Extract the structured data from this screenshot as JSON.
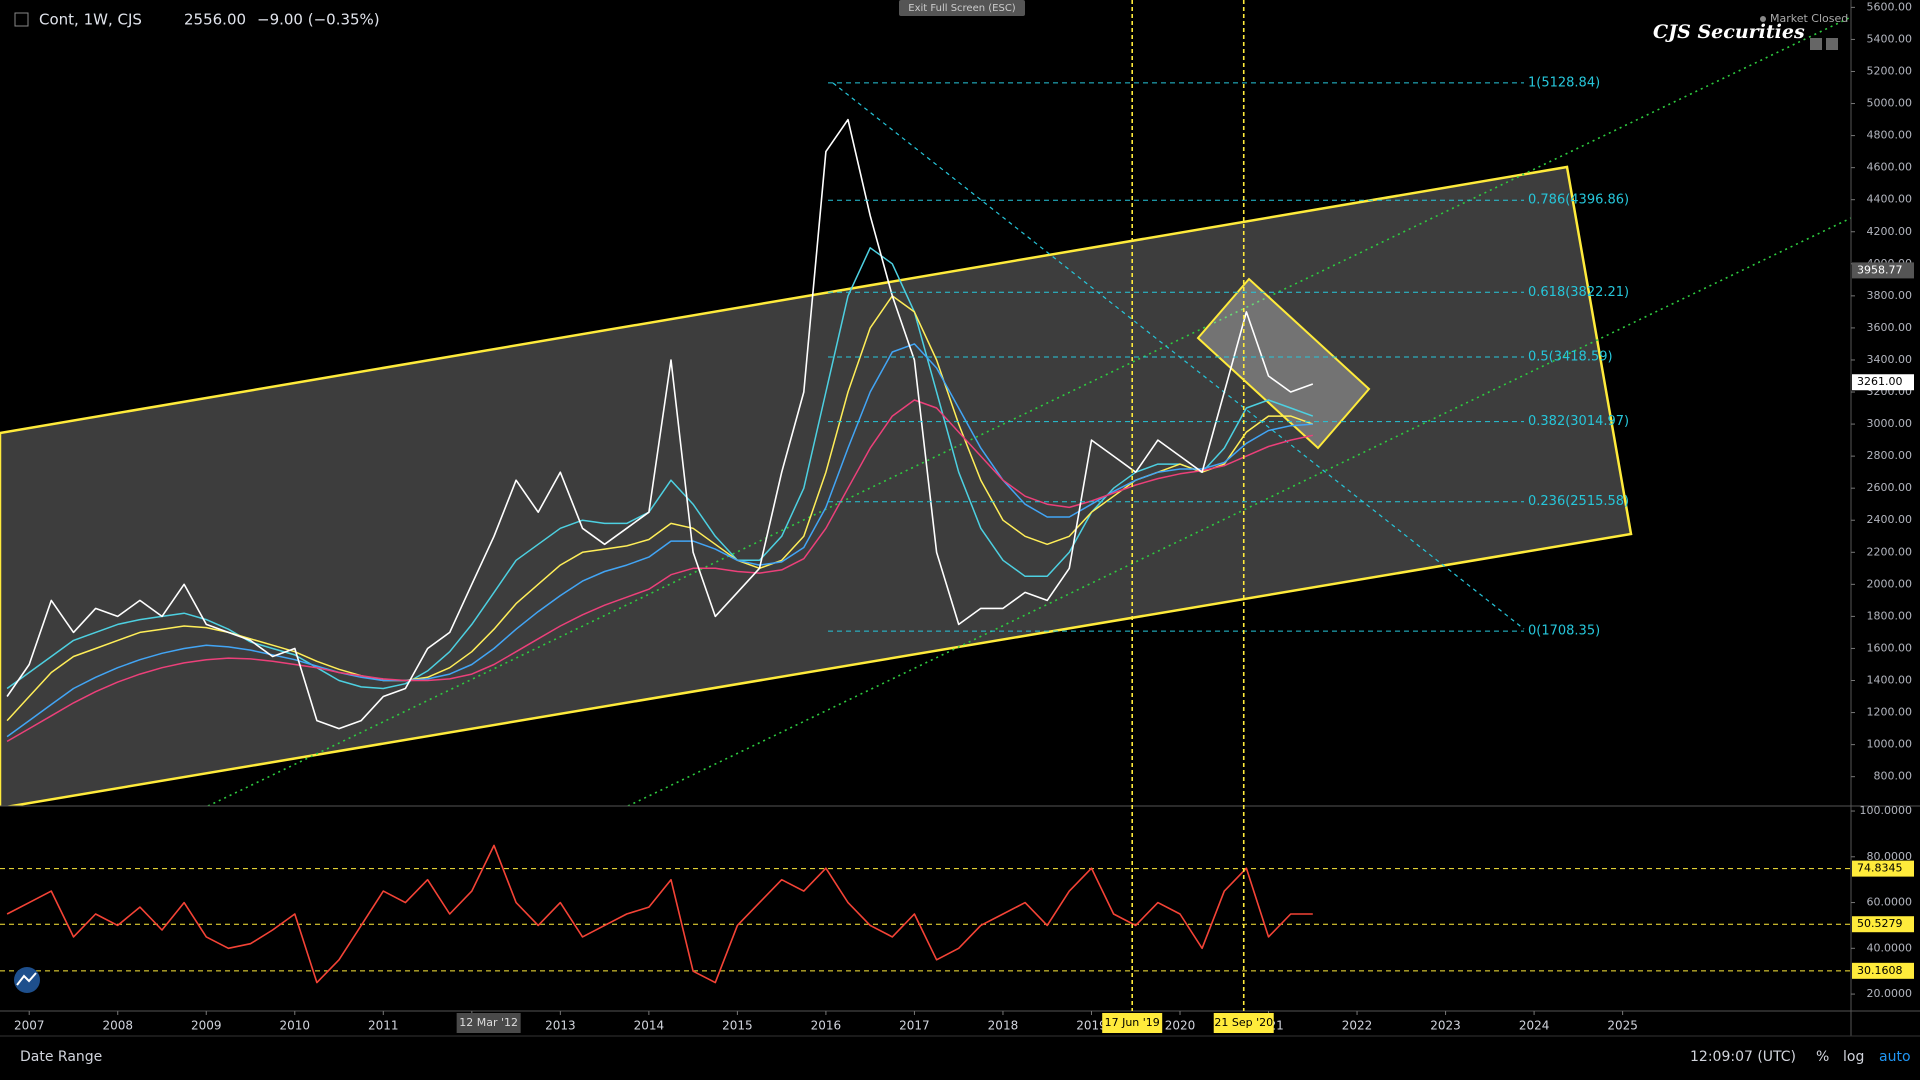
{
  "header": {
    "symbol": "Cont, 1W, CJS",
    "last": "2556.00",
    "change": "−9.00 (−0.35%)",
    "exit": "Exit Full Screen (ESC)",
    "status": "Market Closed",
    "brand": "CJS Securities"
  },
  "footer": {
    "range": "Date Range",
    "time": "12:09:07 (UTC)",
    "percent": "%",
    "log": "log",
    "auto": "auto"
  },
  "chart_data": [
    {
      "type": "line",
      "x": [
        2006.75,
        2007,
        2007.25,
        2007.5,
        2007.75,
        2008,
        2008.25,
        2008.5,
        2008.75,
        2009,
        2009.25,
        2009.5,
        2009.75,
        2010,
        2010.25,
        2010.5,
        2010.75,
        2011,
        2011.25,
        2011.5,
        2011.75,
        2012,
        2012.25,
        2012.5,
        2012.75,
        2013,
        2013.25,
        2013.5,
        2013.75,
        2014,
        2014.25,
        2014.5,
        2014.75,
        2015,
        2015.25,
        2015.5,
        2015.75,
        2016,
        2016.25,
        2016.5,
        2016.75,
        2017,
        2017.25,
        2017.5,
        2017.75,
        2018,
        2018.25,
        2018.5,
        2018.75,
        2019,
        2019.25,
        2019.5,
        2019.75,
        2020,
        2020.25,
        2020.5,
        2020.75,
        2021,
        2021.25,
        2021.5
      ],
      "series": [
        {
          "color": "#ffffff",
          "values": [
            1300,
            1500,
            1900,
            1700,
            1850,
            1800,
            1900,
            1800,
            2000,
            1750,
            1700,
            1650,
            1550,
            1600,
            1150,
            1100,
            1150,
            1300,
            1350,
            1600,
            1700,
            2000,
            2300,
            2650,
            2450,
            2700,
            2350,
            2250,
            2350,
            2450,
            3400,
            2200,
            1800,
            1950,
            2100,
            2700,
            3200,
            4700,
            4900,
            4300,
            3800,
            3400,
            2200,
            1750,
            1850,
            1850,
            1950,
            1900,
            2100,
            2900,
            2800,
            2700,
            2900,
            2800,
            2700,
            3200,
            3700,
            3300,
            3200,
            3250
          ]
        },
        {
          "color": "#4dd0e1",
          "values": [
            1350,
            1450,
            1550,
            1650,
            1700,
            1750,
            1780,
            1800,
            1820,
            1780,
            1720,
            1640,
            1600,
            1560,
            1480,
            1400,
            1360,
            1350,
            1380,
            1460,
            1580,
            1750,
            1950,
            2150,
            2250,
            2350,
            2400,
            2380,
            2380,
            2450,
            2650,
            2500,
            2300,
            2150,
            2150,
            2300,
            2600,
            3200,
            3800,
            4100,
            4000,
            3700,
            3200,
            2700,
            2350,
            2150,
            2050,
            2050,
            2200,
            2450,
            2600,
            2700,
            2750,
            2750,
            2700,
            2850,
            3100,
            3150,
            3100,
            3050
          ]
        },
        {
          "color": "#ffee58",
          "values": [
            1150,
            1300,
            1450,
            1550,
            1600,
            1650,
            1700,
            1720,
            1740,
            1730,
            1700,
            1660,
            1620,
            1580,
            1520,
            1470,
            1430,
            1400,
            1400,
            1420,
            1480,
            1580,
            1720,
            1880,
            2000,
            2120,
            2200,
            2220,
            2240,
            2280,
            2380,
            2350,
            2250,
            2150,
            2100,
            2150,
            2300,
            2700,
            3200,
            3600,
            3800,
            3700,
            3400,
            3000,
            2650,
            2400,
            2300,
            2250,
            2300,
            2450,
            2550,
            2650,
            2700,
            2750,
            2700,
            2750,
            2950,
            3050,
            3050,
            3000
          ]
        },
        {
          "color": "#42a5f5",
          "values": [
            1050,
            1150,
            1250,
            1350,
            1420,
            1480,
            1530,
            1570,
            1600,
            1620,
            1610,
            1590,
            1560,
            1530,
            1490,
            1450,
            1420,
            1400,
            1400,
            1410,
            1440,
            1500,
            1600,
            1720,
            1830,
            1930,
            2020,
            2080,
            2120,
            2170,
            2270,
            2270,
            2220,
            2150,
            2120,
            2140,
            2230,
            2480,
            2850,
            3200,
            3450,
            3500,
            3350,
            3100,
            2850,
            2650,
            2500,
            2420,
            2420,
            2500,
            2580,
            2650,
            2700,
            2720,
            2720,
            2760,
            2880,
            2960,
            2990,
            3000
          ]
        },
        {
          "color": "#ec407a",
          "values": [
            1020,
            1100,
            1180,
            1260,
            1330,
            1390,
            1440,
            1480,
            1510,
            1530,
            1540,
            1535,
            1520,
            1500,
            1480,
            1450,
            1430,
            1410,
            1400,
            1400,
            1410,
            1440,
            1500,
            1580,
            1660,
            1740,
            1810,
            1870,
            1920,
            1970,
            2060,
            2100,
            2100,
            2080,
            2070,
            2090,
            2160,
            2350,
            2600,
            2850,
            3050,
            3150,
            3100,
            2950,
            2800,
            2650,
            2550,
            2500,
            2480,
            2520,
            2570,
            2620,
            2660,
            2690,
            2710,
            2740,
            2800,
            2860,
            2900,
            2930
          ]
        }
      ],
      "xlim": [
        2006.67,
        2027.58
      ],
      "xticks": [
        2007,
        2008,
        2009,
        2010,
        2011,
        2012,
        2013,
        2014,
        2015,
        2016,
        2017,
        2018,
        2019,
        2020,
        2021,
        2022,
        2023,
        2024,
        2025
      ],
      "ylim": [
        617,
        5646
      ],
      "yticks": [
        {
          "value": 800,
          "label": "800.00"
        },
        {
          "value": 1000,
          "label": "1000.00"
        },
        {
          "value": 1200,
          "label": "1200.00"
        },
        {
          "value": 1400,
          "label": "1400.00"
        },
        {
          "value": 1600,
          "label": "1600.00"
        },
        {
          "value": 1800,
          "label": "1800.00"
        },
        {
          "value": 2000,
          "label": "2000.00"
        },
        {
          "value": 2200,
          "label": "2200.00"
        },
        {
          "value": 2400,
          "label": "2400.00"
        },
        {
          "value": 2600,
          "label": "2600.00"
        },
        {
          "value": 2800,
          "label": "2800.00"
        },
        {
          "value": 3000,
          "label": "3000.00"
        },
        {
          "value": 3200,
          "label": "3200.00"
        },
        {
          "value": 3400,
          "label": "3400.00"
        },
        {
          "value": 3600,
          "label": "3600.00"
        },
        {
          "value": 3800,
          "label": "3800.00"
        },
        {
          "value": 4000,
          "label": "4000.00"
        },
        {
          "value": 4200,
          "label": "4200.00"
        },
        {
          "value": 4400,
          "label": "4400.00"
        },
        {
          "value": 4600,
          "label": "4600.00"
        },
        {
          "value": 4800,
          "label": "4800.00"
        },
        {
          "value": 5000,
          "label": "5000.00"
        },
        {
          "value": 5200,
          "label": "5200.00"
        },
        {
          "value": 5400,
          "label": "5400.00"
        },
        {
          "value": 5600,
          "label": "5600.00"
        }
      ],
      "fib_levels": [
        {
          "value": 5128.84,
          "label": "1(5128.84)"
        },
        {
          "value": 4396.86,
          "label": "0.786(4396.86)"
        },
        {
          "value": 3822.21,
          "label": "0.618(3822.21)"
        },
        {
          "value": 3418.59,
          "label": "0.5(3418.59)"
        },
        {
          "value": 3014.97,
          "label": "0.382(3014.97)"
        },
        {
          "value": 2515.58,
          "label": "0.236(2515.58)"
        },
        {
          "value": 1708.35,
          "label": "0(1708.35)"
        }
      ],
      "fib_color": "#26c6da",
      "price_labels": [
        3958.77,
        {
          "value": 3261,
          "label": "3261.00"
        }
      ],
      "markers": [
        {
          "value": 2019.46,
          "label": "17 Jun '19"
        },
        {
          "value": 2020.72,
          "label": "21 Sep '20"
        }
      ],
      "marker_color": "#ffeb3b",
      "crosshair": {
        "value": 2012.19,
        "label": "12 Mar '12"
      }
    },
    {
      "type": "line",
      "x": [
        2006.75,
        2007,
        2007.25,
        2007.5,
        2007.75,
        2008,
        2008.25,
        2008.5,
        2008.75,
        2009,
        2009.25,
        2009.5,
        2009.75,
        2010,
        2010.25,
        2010.5,
        2010.75,
        2011,
        2011.25,
        2011.5,
        2011.75,
        2012,
        2012.25,
        2012.5,
        2012.75,
        2013,
        2013.25,
        2013.5,
        2013.75,
        2014,
        2014.25,
        2014.5,
        2014.75,
        2015,
        2015.25,
        2015.5,
        2015.75,
        2016,
        2016.25,
        2016.5,
        2016.75,
        2017,
        2017.25,
        2017.5,
        2017.75,
        2018,
        2018.25,
        2018.5,
        2018.75,
        2019,
        2019.25,
        2019.5,
        2019.75,
        2020,
        2020.25,
        2020.5,
        2020.75,
        2021,
        2021.25,
        2021.5
      ],
      "series": [
        {
          "color": "#f44336",
          "values": [
            55,
            60,
            65,
            45,
            55,
            50,
            58,
            48,
            60,
            45,
            40,
            42,
            48,
            55,
            25,
            35,
            50,
            65,
            60,
            70,
            55,
            65,
            85,
            60,
            50,
            60,
            45,
            50,
            55,
            58,
            70,
            30,
            25,
            50,
            60,
            70,
            65,
            75,
            60,
            50,
            45,
            55,
            35,
            40,
            50,
            55,
            60,
            50,
            65,
            75,
            55,
            50,
            60,
            55,
            40,
            65,
            75,
            45,
            55,
            55
          ]
        }
      ],
      "xlim": [
        2006.67,
        2027.58
      ],
      "ylim": [
        12.6,
        102.2
      ],
      "yticks": [
        {
          "value": 20,
          "label": "20.0000"
        },
        {
          "value": 40,
          "label": "40.0000"
        },
        {
          "value": 60,
          "label": "60.0000"
        },
        {
          "value": 80,
          "label": "80.0000"
        },
        {
          "value": 100,
          "label": "100.0000"
        }
      ],
      "levels": [
        74.8345,
        50.5279,
        30.1608
      ],
      "level_color": "#ffeb3b"
    }
  ]
}
